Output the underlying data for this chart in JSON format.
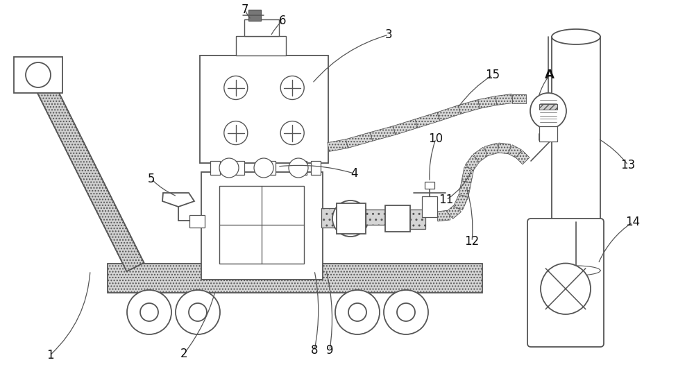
{
  "bg_color": "#ffffff",
  "lc": "#555555",
  "figsize": [
    10.0,
    5.29
  ],
  "dpi": 100,
  "hatch_fill": "#e0e0e0",
  "white": "#ffffff",
  "gray": "#cccccc"
}
